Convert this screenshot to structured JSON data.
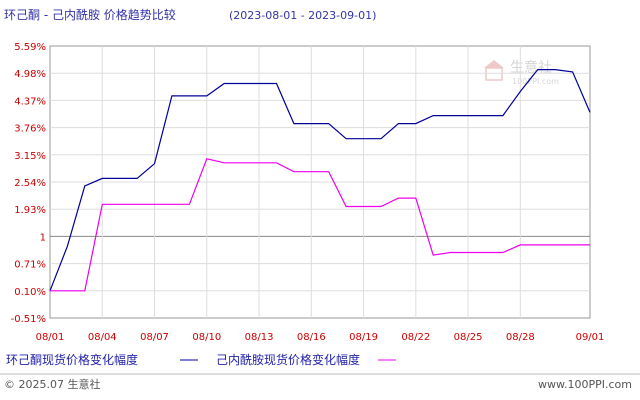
{
  "chart_data": {
    "type": "line",
    "title": "环己酮 - 己内酰胺 价格趋势比较",
    "date_range": "(2023-08-01 - 2023-09-01)",
    "x": [
      "08/01",
      "08/02",
      "08/03",
      "08/04",
      "08/05",
      "08/06",
      "08/07",
      "08/08",
      "08/09",
      "08/10",
      "08/11",
      "08/12",
      "08/13",
      "08/14",
      "08/15",
      "08/16",
      "08/17",
      "08/18",
      "08/19",
      "08/20",
      "08/21",
      "08/22",
      "08/23",
      "08/24",
      "08/25",
      "08/26",
      "08/27",
      "08/28",
      "08/29",
      "08/30",
      "08/31",
      "09/01"
    ],
    "x_tick_labels": [
      "08/01",
      "08/04",
      "08/07",
      "08/10",
      "08/13",
      "08/16",
      "08/19",
      "08/22",
      "08/25",
      "08/28",
      "09/01"
    ],
    "y_tick_labels": [
      "5.59%",
      "4.98%",
      "4.37%",
      "3.76%",
      "3.15%",
      "2.54%",
      "1.93%",
      "1",
      "0.71%",
      "0.10%",
      "-0.51%"
    ],
    "ylim": [
      -0.51,
      5.59
    ],
    "grid": true,
    "legend_position": "bottom",
    "series": [
      {
        "name": "环己酮现货价格变化幅度",
        "color": "#000099",
        "values": [
          0.1,
          1.1,
          2.45,
          2.62,
          2.62,
          2.62,
          2.95,
          4.47,
          4.47,
          4.47,
          4.75,
          4.75,
          4.75,
          4.75,
          3.85,
          3.85,
          3.85,
          3.51,
          3.51,
          3.51,
          3.85,
          3.85,
          4.03,
          4.03,
          4.03,
          4.03,
          4.03,
          4.57,
          5.06,
          5.06,
          5.01,
          4.1
        ]
      },
      {
        "name": "己内酰胺现货价格变化幅度",
        "color": "#ee00ee",
        "values": [
          0.1,
          0.1,
          0.1,
          2.04,
          2.04,
          2.04,
          2.04,
          2.04,
          2.04,
          3.06,
          2.97,
          2.97,
          2.97,
          2.97,
          2.77,
          2.77,
          2.77,
          1.99,
          1.99,
          1.99,
          2.18,
          2.18,
          0.9,
          0.96,
          0.96,
          0.96,
          0.96,
          1.13,
          1.13,
          1.13,
          1.13,
          1.13
        ]
      }
    ]
  },
  "footer": {
    "copyright": "© 2025.07 生意社",
    "site": "www.100PPI.com"
  },
  "watermark": {
    "brand": "生意社",
    "url": "100PPI.com"
  },
  "colors": {
    "accent": "#3333aa",
    "tick": "#cc0000",
    "grid": "#dddddd"
  }
}
